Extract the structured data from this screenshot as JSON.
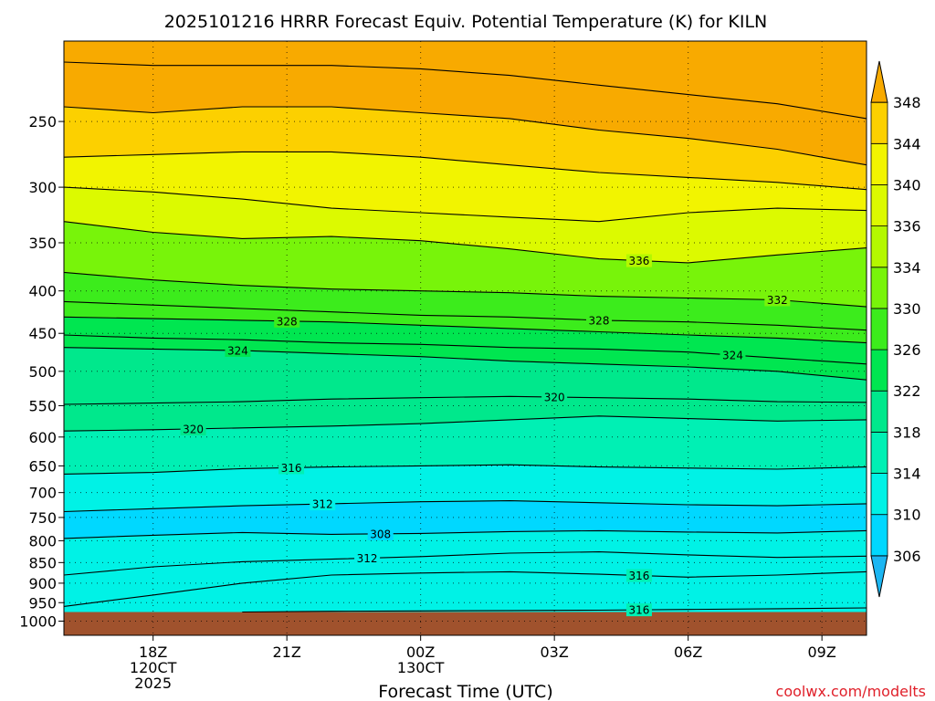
{
  "title": "2025101216 HRRR Forecast Equiv. Potential Temperature (K) for KILN",
  "credit": "coolwx.com/modelts",
  "chart_data": {
    "type": "heatmap",
    "title": "2025101216 HRRR Forecast Equiv. Potential Temperature (K) for KILN",
    "xlabel": "Forecast Time (UTC)",
    "ylabel": "",
    "x_axis": {
      "range_hours": [
        16,
        34
      ],
      "ticks": [
        {
          "h": 18,
          "lines": [
            "18Z",
            "120CT",
            "2025"
          ]
        },
        {
          "h": 21,
          "lines": [
            "21Z"
          ]
        },
        {
          "h": 24,
          "lines": [
            "00Z",
            "130CT"
          ]
        },
        {
          "h": 27,
          "lines": [
            "03Z"
          ]
        },
        {
          "h": 30,
          "lines": [
            "06Z"
          ]
        },
        {
          "h": 33,
          "lines": [
            "09Z"
          ]
        }
      ]
    },
    "y_axis": {
      "scale": "log",
      "range_hpa": [
        1040,
        200
      ],
      "ticks": [
        250,
        300,
        350,
        400,
        450,
        500,
        550,
        600,
        650,
        700,
        750,
        800,
        850,
        900,
        950,
        1000
      ]
    },
    "grid": true,
    "colorbar": {
      "levels": [
        302,
        306,
        310,
        314,
        318,
        322,
        326,
        330,
        334,
        336,
        340,
        344,
        348,
        352
      ],
      "labels": [
        306,
        310,
        314,
        318,
        322,
        326,
        330,
        334,
        336,
        340,
        344,
        348
      ],
      "colors": [
        "#1cb6f2",
        "#00d8ff",
        "#00f2e6",
        "#00f0b4",
        "#00e88c",
        "#00e650",
        "#3cec1c",
        "#78f40a",
        "#b4f800",
        "#dcfa00",
        "#f2f400",
        "#fcd000",
        "#f8aa00"
      ]
    },
    "surface_pressure": 975,
    "colors": {
      "ground": "#a0522d"
    },
    "series": [
      {
        "type": "contour",
        "value": 308,
        "label": "308",
        "label_x": 23.1,
        "x": [
          16,
          18,
          20,
          22,
          24,
          26,
          28,
          30,
          32,
          34
        ],
        "p": [
          795,
          788,
          782,
          786,
          784,
          780,
          778,
          781,
          783,
          778
        ]
      },
      {
        "type": "contour",
        "value": 312,
        "label": "312",
        "label_x": 21.8,
        "x": [
          16,
          18,
          20,
          22,
          24,
          26,
          28,
          30,
          32,
          34
        ],
        "p": [
          738,
          732,
          726,
          722,
          718,
          716,
          720,
          724,
          726,
          722
        ]
      },
      {
        "type": "contour",
        "value": 312,
        "label": "312",
        "label_x": 22.8,
        "x": [
          16,
          18,
          20,
          22,
          24,
          26,
          28,
          30,
          32,
          34
        ],
        "p": [
          880,
          860,
          848,
          842,
          836,
          828,
          825,
          832,
          838,
          835
        ]
      },
      {
        "type": "contour",
        "value": 316,
        "label": "316",
        "label_x": 21.1,
        "x": [
          16,
          18,
          20,
          22,
          24,
          26,
          28,
          30,
          32,
          34
        ],
        "p": [
          665,
          662,
          655,
          652,
          650,
          648,
          652,
          654,
          656,
          652
        ]
      },
      {
        "type": "contour",
        "value": 316,
        "label": "316",
        "label_x": 28.9,
        "x": [
          16,
          18,
          20,
          22,
          24,
          26,
          28,
          30,
          32,
          34
        ],
        "p": [
          960,
          930,
          900,
          880,
          875,
          872,
          878,
          885,
          880,
          872
        ]
      },
      {
        "type": "contour",
        "value": 316,
        "label": "316",
        "label_x": 28.9,
        "x": [
          20,
          22,
          24,
          26,
          28,
          30,
          32,
          34
        ],
        "p": [
          975,
          973,
          972,
          971,
          970,
          968,
          966,
          964
        ]
      },
      {
        "type": "contour",
        "value": 320,
        "label": "320",
        "label_x": 18.9,
        "x": [
          16,
          18,
          20,
          22,
          24,
          26,
          28,
          30,
          32,
          34
        ],
        "p": [
          590,
          588,
          585,
          582,
          578,
          572,
          566,
          570,
          574,
          572
        ]
      },
      {
        "type": "contour",
        "value": 320,
        "label": "320",
        "label_x": 27.0,
        "x": [
          16,
          18,
          20,
          22,
          24,
          26,
          28,
          30,
          32,
          34
        ],
        "p": [
          548,
          546,
          544,
          540,
          538,
          536,
          538,
          540,
          544,
          545
        ]
      },
      {
        "type": "contour",
        "value": 324,
        "label": "324",
        "label_x": 19.9,
        "x": [
          16,
          18,
          20,
          22,
          24,
          26,
          28,
          30,
          32,
          34
        ],
        "p": [
          468,
          470,
          472,
          476,
          480,
          486,
          490,
          494,
          500,
          512
        ]
      },
      {
        "type": "contour",
        "value": 324,
        "label": "324",
        "label_x": 31.0,
        "x": [
          16,
          18,
          20,
          22,
          24,
          26,
          28,
          30,
          32,
          34
        ],
        "p": [
          452,
          456,
          458,
          462,
          464,
          468,
          470,
          474,
          482,
          490
        ]
      },
      {
        "type": "contour",
        "value": 328,
        "label": "328",
        "label_x": 21.0,
        "x": [
          16,
          18,
          20,
          22,
          24,
          26,
          28,
          30,
          32,
          34
        ],
        "p": [
          430,
          432,
          434,
          436,
          440,
          444,
          448,
          452,
          456,
          462
        ]
      },
      {
        "type": "contour",
        "value": 328,
        "label": "328",
        "label_x": 28.0,
        "x": [
          16,
          18,
          20,
          22,
          24,
          26,
          28,
          30,
          32,
          34
        ],
        "p": [
          412,
          416,
          420,
          424,
          428,
          430,
          434,
          436,
          440,
          446
        ]
      },
      {
        "type": "contour",
        "value": 332,
        "label": "332",
        "label_x": 32.0,
        "x": [
          16,
          18,
          20,
          22,
          24,
          26,
          28,
          30,
          32,
          34
        ],
        "p": [
          380,
          388,
          394,
          398,
          400,
          402,
          406,
          408,
          410,
          418
        ]
      },
      {
        "type": "contour",
        "value": 336,
        "label": "336",
        "label_x": 28.9,
        "x": [
          16,
          18,
          20,
          22,
          24,
          26,
          28,
          30,
          32,
          34
        ],
        "p": [
          330,
          340,
          346,
          344,
          348,
          356,
          366,
          370,
          362,
          355
        ]
      },
      {
        "type": "contour",
        "value": 340,
        "label": "",
        "label_x": 0,
        "x": [
          16,
          18,
          20,
          22,
          24,
          26,
          28,
          30,
          32,
          34
        ],
        "p": [
          300,
          304,
          310,
          318,
          322,
          326,
          330,
          322,
          318,
          320
        ]
      },
      {
        "type": "contour",
        "value": 344,
        "label": "",
        "label_x": 0,
        "x": [
          16,
          18,
          20,
          22,
          24,
          26,
          28,
          30,
          32,
          34
        ],
        "p": [
          276,
          274,
          272,
          272,
          276,
          282,
          288,
          292,
          296,
          302
        ]
      },
      {
        "type": "contour",
        "value": 348,
        "label": "",
        "label_x": 0,
        "x": [
          16,
          18,
          20,
          22,
          24,
          26,
          28,
          30,
          32,
          34
        ],
        "p": [
          240,
          244,
          240,
          240,
          244,
          248,
          256,
          262,
          270,
          282
        ]
      },
      {
        "type": "contour",
        "value": 352,
        "label": "",
        "label_x": 0,
        "x": [
          16,
          18,
          20,
          22,
          24,
          26,
          28,
          30,
          32,
          34
        ],
        "p": [
          212,
          214,
          214,
          214,
          216,
          220,
          226,
          232,
          238,
          248
        ]
      }
    ]
  }
}
